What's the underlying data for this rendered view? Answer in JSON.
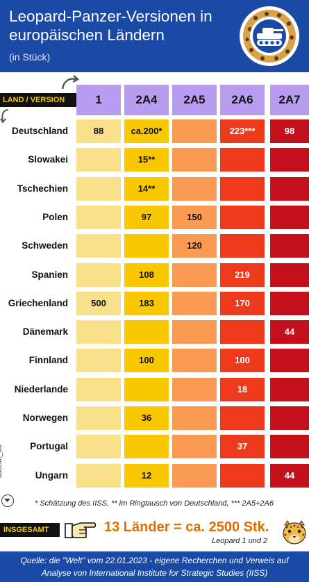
{
  "header": {
    "title": "Leopard-Panzer-Versionen in europäischen Ländern",
    "subtitle": "(in Stück)"
  },
  "legend_label": "LAND / VERSION",
  "colors": {
    "header_bg": "#1b4aa6",
    "col_head_bg": "#b89cf0",
    "v1": "#f9e08a",
    "v2a4": "#fac800",
    "v2a5": "#fb9a52",
    "v2a6": "#ee3a1c",
    "v2a7": "#c4101a",
    "accent_total": "#e06d00"
  },
  "chart_data": {
    "type": "table",
    "columns": [
      "1",
      "2A4",
      "2A5",
      "2A6",
      "2A7"
    ],
    "rows": [
      {
        "country": "Deutschland",
        "values": [
          "88",
          "ca.200*",
          "",
          "223***",
          "98"
        ]
      },
      {
        "country": "Slowakei",
        "values": [
          "",
          "15**",
          "",
          "",
          ""
        ]
      },
      {
        "country": "Tschechien",
        "values": [
          "",
          "14**",
          "",
          "",
          ""
        ]
      },
      {
        "country": "Polen",
        "values": [
          "",
          "97",
          "150",
          "",
          ""
        ]
      },
      {
        "country": "Schweden",
        "values": [
          "",
          "",
          "120",
          "",
          ""
        ]
      },
      {
        "country": "Spanien",
        "values": [
          "",
          "108",
          "",
          "219",
          ""
        ]
      },
      {
        "country": "Griechenland",
        "values": [
          "500",
          "183",
          "",
          "170",
          ""
        ]
      },
      {
        "country": "Dänemark",
        "values": [
          "",
          "",
          "",
          "",
          "44"
        ]
      },
      {
        "country": "Finnland",
        "values": [
          "",
          "100",
          "",
          "100",
          ""
        ]
      },
      {
        "country": "Niederlande",
        "values": [
          "",
          "",
          "",
          "18",
          ""
        ]
      },
      {
        "country": "Norwegen",
        "values": [
          "",
          "36",
          "",
          "",
          ""
        ]
      },
      {
        "country": "Portugal",
        "values": [
          "",
          "",
          "",
          "37",
          ""
        ]
      },
      {
        "country": "Ungarn",
        "values": [
          "",
          "12",
          "",
          "",
          "44"
        ]
      }
    ]
  },
  "watermark": "satellit_de",
  "footnote": "* Schätzung des IISS, ** im Ringtausch von Deutschland, *** 2A5+2A6",
  "total": {
    "label": "INSGESAMT",
    "text": "13 Länder = ca. 2500 Stk.",
    "sub": "Leopard 1 und 2"
  },
  "source": {
    "line1": "Quelle:  die \"Welt\" vom 22.01.2023 - eigene Recherchen und Verweis auf",
    "line2": "Analyse von International Institute for Strategic Studies (IISS)"
  }
}
